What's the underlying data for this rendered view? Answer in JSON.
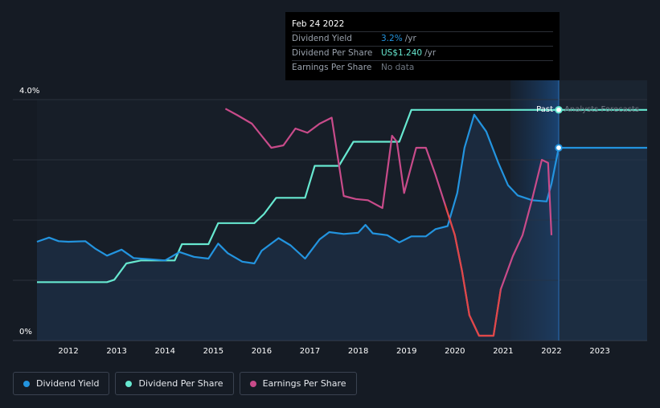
{
  "chart_data": {
    "type": "line",
    "x_axis": {
      "ticks": [
        "2012",
        "2013",
        "2014",
        "2015",
        "2016",
        "2017",
        "2018",
        "2019",
        "2020",
        "2021",
        "2022",
        "2023"
      ],
      "range": [
        2011.35,
        2023.98
      ]
    },
    "y_axis": {
      "top_label": "4.0%",
      "bottom_label": "0%",
      "range_pct": [
        0,
        4.0
      ]
    },
    "regions": {
      "past_label": "Past",
      "forecast_label": "Analysts Forecasts",
      "divider_year": 2022.15,
      "shade_start_year": 2021.15
    },
    "series": [
      {
        "name": "Dividend Yield",
        "color": "#2394df",
        "unit": "% yield",
        "points": [
          [
            2011.35,
            1.64
          ],
          [
            2011.6,
            1.71
          ],
          [
            2011.8,
            1.65
          ],
          [
            2012.0,
            1.64
          ],
          [
            2012.35,
            1.65
          ],
          [
            2012.55,
            1.53
          ],
          [
            2012.8,
            1.41
          ],
          [
            2013.1,
            1.51
          ],
          [
            2013.35,
            1.37
          ],
          [
            2013.7,
            1.35
          ],
          [
            2014.0,
            1.33
          ],
          [
            2014.3,
            1.47
          ],
          [
            2014.6,
            1.39
          ],
          [
            2014.9,
            1.36
          ],
          [
            2015.1,
            1.61
          ],
          [
            2015.3,
            1.45
          ],
          [
            2015.6,
            1.31
          ],
          [
            2015.85,
            1.28
          ],
          [
            2016.0,
            1.49
          ],
          [
            2016.35,
            1.7
          ],
          [
            2016.6,
            1.58
          ],
          [
            2016.9,
            1.36
          ],
          [
            2017.2,
            1.68
          ],
          [
            2017.4,
            1.8
          ],
          [
            2017.7,
            1.77
          ],
          [
            2018.0,
            1.79
          ],
          [
            2018.15,
            1.92
          ],
          [
            2018.3,
            1.78
          ],
          [
            2018.6,
            1.75
          ],
          [
            2018.85,
            1.63
          ],
          [
            2019.1,
            1.73
          ],
          [
            2019.4,
            1.73
          ],
          [
            2019.6,
            1.85
          ],
          [
            2019.85,
            1.9
          ],
          [
            2020.05,
            2.45
          ],
          [
            2020.2,
            3.2
          ],
          [
            2020.4,
            3.75
          ],
          [
            2020.65,
            3.47
          ],
          [
            2020.9,
            2.95
          ],
          [
            2021.1,
            2.58
          ],
          [
            2021.3,
            2.41
          ],
          [
            2021.6,
            2.33
          ],
          [
            2021.9,
            2.31
          ],
          [
            2022.0,
            2.6
          ],
          [
            2022.15,
            3.2
          ],
          [
            2023.98,
            3.2
          ]
        ]
      },
      {
        "name": "Dividend Per Share",
        "color": "#67e8d0",
        "unit": "% yield axis",
        "points": [
          [
            2011.35,
            0.97
          ],
          [
            2012.8,
            0.97
          ],
          [
            2012.95,
            1.01
          ],
          [
            2013.2,
            1.28
          ],
          [
            2013.5,
            1.33
          ],
          [
            2014.2,
            1.33
          ],
          [
            2014.35,
            1.6
          ],
          [
            2014.9,
            1.6
          ],
          [
            2015.1,
            1.95
          ],
          [
            2015.85,
            1.95
          ],
          [
            2016.05,
            2.1
          ],
          [
            2016.3,
            2.37
          ],
          [
            2016.9,
            2.37
          ],
          [
            2017.1,
            2.9
          ],
          [
            2017.6,
            2.9
          ],
          [
            2017.9,
            3.3
          ],
          [
            2018.85,
            3.3
          ],
          [
            2019.1,
            3.83
          ],
          [
            2023.98,
            3.83
          ]
        ]
      },
      {
        "name": "Earnings Per Share",
        "color": "#c84b8a",
        "color_negative": "#e04848",
        "unit": "relative",
        "points": [
          [
            2015.25,
            3.85
          ],
          [
            2015.5,
            3.74
          ],
          [
            2015.8,
            3.6
          ],
          [
            2016.0,
            3.4
          ],
          [
            2016.2,
            3.2
          ],
          [
            2016.45,
            3.24
          ],
          [
            2016.7,
            3.52
          ],
          [
            2016.95,
            3.45
          ],
          [
            2017.2,
            3.6
          ],
          [
            2017.45,
            3.7
          ],
          [
            2017.7,
            2.4
          ],
          [
            2017.95,
            2.35
          ],
          [
            2018.2,
            2.33
          ],
          [
            2018.5,
            2.2
          ],
          [
            2018.7,
            3.4
          ],
          [
            2018.8,
            3.3
          ],
          [
            2018.95,
            2.45
          ],
          [
            2019.2,
            3.2
          ],
          [
            2019.4,
            3.2
          ],
          [
            2019.6,
            2.75
          ],
          [
            2019.8,
            2.25
          ],
          [
            2020.0,
            1.75
          ],
          [
            2020.15,
            1.15
          ],
          [
            2020.3,
            0.42
          ],
          [
            2020.5,
            0.08
          ],
          [
            2020.8,
            0.08
          ],
          [
            2020.95,
            0.85
          ],
          [
            2021.2,
            1.4
          ],
          [
            2021.4,
            1.75
          ],
          [
            2021.6,
            2.35
          ],
          [
            2021.8,
            3.0
          ],
          [
            2021.93,
            2.95
          ],
          [
            2022.0,
            1.75
          ]
        ]
      }
    ],
    "markers": [
      {
        "series": "Dividend Per Share",
        "x": 2022.15,
        "y": 3.83
      },
      {
        "series": "Dividend Yield",
        "x": 2022.15,
        "y": 3.2
      }
    ],
    "tooltip": {
      "date": "Feb 24 2022",
      "rows": [
        {
          "key": "Dividend Yield",
          "value": "3.2%",
          "unit": "/yr",
          "color": "#2394df"
        },
        {
          "key": "Dividend Per Share",
          "value": "US$1.240",
          "unit": "/yr",
          "color": "#67e8d0"
        },
        {
          "key": "Earnings Per Share",
          "value": "No data",
          "unit": "",
          "color": "#6f7782"
        }
      ]
    },
    "legend": [
      {
        "label": "Dividend Yield",
        "color": "#2394df"
      },
      {
        "label": "Dividend Per Share",
        "color": "#67e8d0"
      },
      {
        "label": "Earnings Per Share",
        "color": "#c84b8a"
      }
    ],
    "grid": true
  }
}
